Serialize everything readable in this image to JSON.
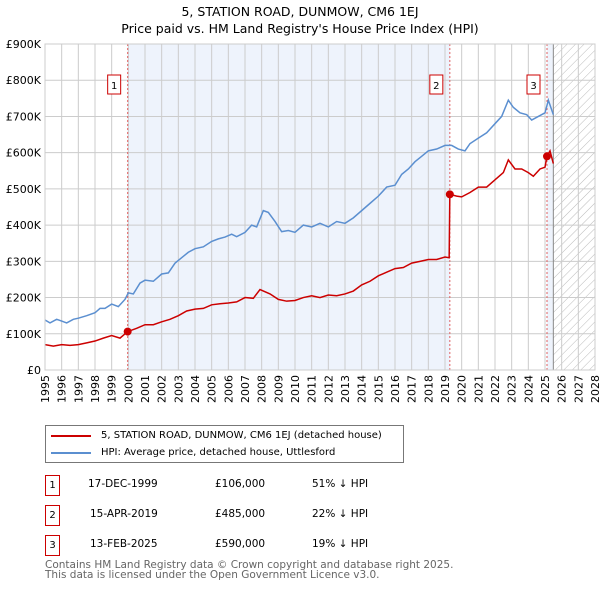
{
  "chart_data": {
    "type": "line",
    "title": "5, STATION ROAD, DUNMOW, CM6 1EJ",
    "subtitle": "Price paid vs. HM Land Registry's House Price Index (HPI)",
    "xlim": [
      1995,
      2028
    ],
    "ylim": [
      0,
      900000
    ],
    "x_ticks": [
      "1995",
      "1996",
      "1997",
      "1998",
      "1999",
      "2000",
      "2001",
      "2002",
      "2003",
      "2004",
      "2005",
      "2006",
      "2007",
      "2008",
      "2009",
      "2010",
      "2011",
      "2012",
      "2013",
      "2014",
      "2015",
      "2016",
      "2017",
      "2018",
      "2019",
      "2020",
      "2021",
      "2022",
      "2023",
      "2024",
      "2025",
      "2026",
      "2027",
      "2028"
    ],
    "y_ticks": [
      {
        "v": 0,
        "label": "£0"
      },
      {
        "v": 100000,
        "label": "£100K"
      },
      {
        "v": 200000,
        "label": "£200K"
      },
      {
        "v": 300000,
        "label": "£300K"
      },
      {
        "v": 400000,
        "label": "£400K"
      },
      {
        "v": 500000,
        "label": "£500K"
      },
      {
        "v": 600000,
        "label": "£600K"
      },
      {
        "v": 700000,
        "label": "£700K"
      },
      {
        "v": 800000,
        "label": "£800K"
      },
      {
        "v": 900000,
        "label": "£900K"
      }
    ],
    "grid": true,
    "forecast_start": 2025.5,
    "series": [
      {
        "name": "5, STATION ROAD, DUNMOW, CM6 1EJ (detached house)",
        "color": "#cc0000",
        "points": [
          [
            1995,
            70000
          ],
          [
            1995.5,
            66000
          ],
          [
            1996,
            70000
          ],
          [
            1996.5,
            68000
          ],
          [
            1997,
            70000
          ],
          [
            1997.5,
            75000
          ],
          [
            1998,
            80000
          ],
          [
            1998.5,
            88000
          ],
          [
            1999,
            95000
          ],
          [
            1999.5,
            88000
          ],
          [
            1999.96,
            106000
          ],
          [
            2000.5,
            115000
          ],
          [
            2001,
            125000
          ],
          [
            2001.5,
            125000
          ],
          [
            2002,
            133000
          ],
          [
            2002.5,
            140000
          ],
          [
            2003,
            150000
          ],
          [
            2003.5,
            163000
          ],
          [
            2004,
            168000
          ],
          [
            2004.5,
            170000
          ],
          [
            2005,
            180000
          ],
          [
            2005.5,
            183000
          ],
          [
            2006,
            185000
          ],
          [
            2006.5,
            188000
          ],
          [
            2007,
            200000
          ],
          [
            2007.5,
            198000
          ],
          [
            2007.9,
            222000
          ],
          [
            2008.5,
            210000
          ],
          [
            2009,
            195000
          ],
          [
            2009.5,
            190000
          ],
          [
            2010,
            192000
          ],
          [
            2010.5,
            200000
          ],
          [
            2011,
            205000
          ],
          [
            2011.5,
            200000
          ],
          [
            2012,
            207000
          ],
          [
            2012.5,
            205000
          ],
          [
            2013,
            210000
          ],
          [
            2013.5,
            218000
          ],
          [
            2014,
            235000
          ],
          [
            2014.5,
            245000
          ],
          [
            2015,
            260000
          ],
          [
            2015.5,
            270000
          ],
          [
            2016,
            280000
          ],
          [
            2016.5,
            283000
          ],
          [
            2017,
            295000
          ],
          [
            2017.5,
            300000
          ],
          [
            2018,
            305000
          ],
          [
            2018.5,
            305000
          ],
          [
            2019,
            312000
          ],
          [
            2019.25,
            310000
          ],
          [
            2019.29,
            485000
          ],
          [
            2019.7,
            480000
          ],
          [
            2020,
            478000
          ],
          [
            2020.5,
            490000
          ],
          [
            2021,
            505000
          ],
          [
            2021.5,
            505000
          ],
          [
            2022,
            525000
          ],
          [
            2022.5,
            545000
          ],
          [
            2022.8,
            580000
          ],
          [
            2023.2,
            555000
          ],
          [
            2023.6,
            555000
          ],
          [
            2024,
            545000
          ],
          [
            2024.3,
            535000
          ],
          [
            2024.7,
            555000
          ],
          [
            2025.0,
            560000
          ],
          [
            2025.12,
            590000
          ],
          [
            2025.3,
            605000
          ],
          [
            2025.5,
            570000
          ]
        ]
      },
      {
        "name": "HPI: Average price, detached house, Uttlesford",
        "color": "#5b8fd0",
        "points": [
          [
            1995,
            138000
          ],
          [
            1995.3,
            130000
          ],
          [
            1995.7,
            140000
          ],
          [
            1996,
            135000
          ],
          [
            1996.3,
            130000
          ],
          [
            1996.7,
            140000
          ],
          [
            1997,
            143000
          ],
          [
            1997.5,
            150000
          ],
          [
            1998,
            158000
          ],
          [
            1998.3,
            170000
          ],
          [
            1998.6,
            170000
          ],
          [
            1999,
            182000
          ],
          [
            1999.4,
            175000
          ],
          [
            1999.8,
            195000
          ],
          [
            2000,
            213000
          ],
          [
            2000.3,
            210000
          ],
          [
            2000.7,
            240000
          ],
          [
            2001,
            248000
          ],
          [
            2001.5,
            245000
          ],
          [
            2002,
            265000
          ],
          [
            2002.4,
            268000
          ],
          [
            2002.8,
            295000
          ],
          [
            2003.2,
            310000
          ],
          [
            2003.6,
            325000
          ],
          [
            2004,
            335000
          ],
          [
            2004.5,
            340000
          ],
          [
            2005,
            355000
          ],
          [
            2005.4,
            362000
          ],
          [
            2005.8,
            367000
          ],
          [
            2006.2,
            375000
          ],
          [
            2006.5,
            368000
          ],
          [
            2007,
            380000
          ],
          [
            2007.4,
            400000
          ],
          [
            2007.7,
            395000
          ],
          [
            2008.1,
            440000
          ],
          [
            2008.4,
            435000
          ],
          [
            2008.8,
            410000
          ],
          [
            2009.2,
            382000
          ],
          [
            2009.6,
            385000
          ],
          [
            2010,
            380000
          ],
          [
            2010.5,
            400000
          ],
          [
            2011,
            395000
          ],
          [
            2011.5,
            405000
          ],
          [
            2012,
            395000
          ],
          [
            2012.5,
            410000
          ],
          [
            2013,
            405000
          ],
          [
            2013.5,
            420000
          ],
          [
            2014,
            440000
          ],
          [
            2014.5,
            460000
          ],
          [
            2015,
            480000
          ],
          [
            2015.5,
            505000
          ],
          [
            2016,
            510000
          ],
          [
            2016.4,
            540000
          ],
          [
            2016.8,
            555000
          ],
          [
            2017.2,
            575000
          ],
          [
            2017.6,
            590000
          ],
          [
            2018,
            605000
          ],
          [
            2018.5,
            610000
          ],
          [
            2019,
            620000
          ],
          [
            2019.4,
            620000
          ],
          [
            2019.8,
            610000
          ],
          [
            2020.2,
            605000
          ],
          [
            2020.5,
            625000
          ],
          [
            2021,
            640000
          ],
          [
            2021.5,
            655000
          ],
          [
            2022,
            680000
          ],
          [
            2022.4,
            700000
          ],
          [
            2022.8,
            745000
          ],
          [
            2023.1,
            725000
          ],
          [
            2023.5,
            710000
          ],
          [
            2023.9,
            705000
          ],
          [
            2024.2,
            690000
          ],
          [
            2024.6,
            700000
          ],
          [
            2025,
            710000
          ],
          [
            2025.2,
            745000
          ],
          [
            2025.5,
            705000
          ]
        ]
      }
    ],
    "sales": [
      {
        "label": "1",
        "x": 1999.96,
        "y": 106000
      },
      {
        "label": "2",
        "x": 2019.29,
        "y": 485000
      },
      {
        "label": "3",
        "x": 2025.12,
        "y": 590000
      }
    ]
  },
  "legend": {
    "property": "5, STATION ROAD, DUNMOW, CM6 1EJ (detached house)",
    "hpi": "HPI: Average price, detached house, Uttlesford"
  },
  "sales_table": [
    {
      "num": "1",
      "date": "17-DEC-1999",
      "price": "£106,000",
      "delta": "51% ↓ HPI"
    },
    {
      "num": "2",
      "date": "15-APR-2019",
      "price": "£485,000",
      "delta": "22% ↓ HPI"
    },
    {
      "num": "3",
      "date": "13-FEB-2025",
      "price": "£590,000",
      "delta": "19% ↓ HPI"
    }
  ],
  "footer": {
    "line1": "Contains HM Land Registry data © Crown copyright and database right 2025.",
    "line2": "This data is licensed under the Open Government Licence v3.0."
  }
}
